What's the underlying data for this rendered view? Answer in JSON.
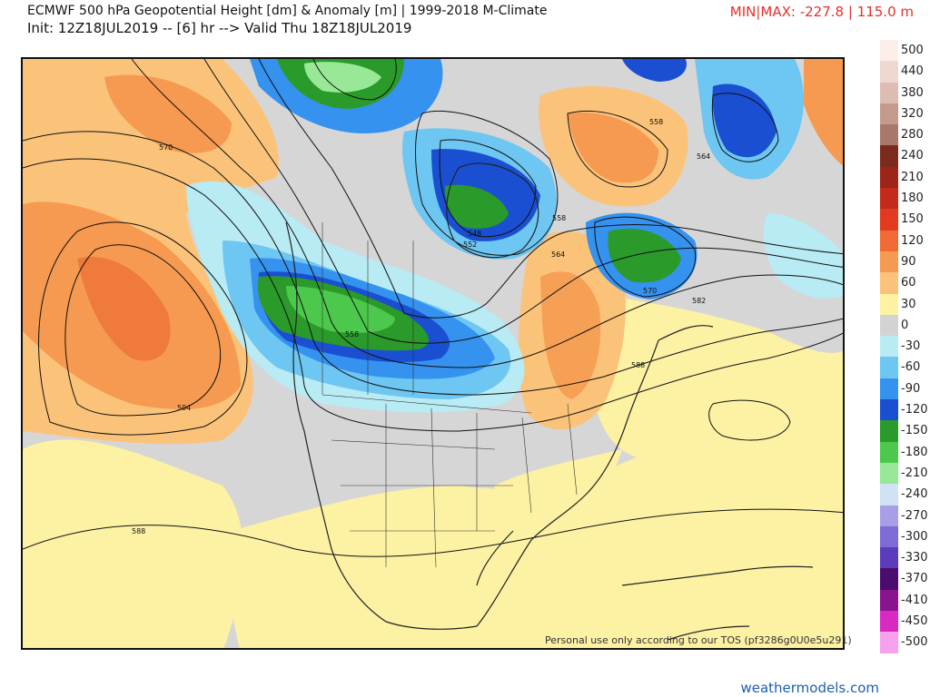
{
  "header": {
    "title": "ECMWF 500 hPa Geopotential Height [dm] & Anomaly [m] | 1999-2018 M-Climate",
    "subtitle": "Init: 12Z18JUL2019 -- [6] hr --> Valid Thu 18Z18JUL2019",
    "minmax": "MIN|MAX: -227.8 | 115.0 m"
  },
  "map": {
    "contour_labels": [
      "570",
      "558",
      "564",
      "552",
      "548",
      "558",
      "564",
      "570",
      "582",
      "588",
      "594",
      "588",
      "558"
    ],
    "watermark": "Personal use only according to our TOS (pf3286g0U0e5u291)"
  },
  "legend": {
    "items": [
      {
        "label": "500",
        "color": "#fdeee9"
      },
      {
        "label": "440",
        "color": "#efd8d0"
      },
      {
        "label": "380",
        "color": "#ddbdb2"
      },
      {
        "label": "320",
        "color": "#c49a8c"
      },
      {
        "label": "280",
        "color": "#a8786a"
      },
      {
        "label": "240",
        "color": "#7c2a1e"
      },
      {
        "label": "210",
        "color": "#9c2418"
      },
      {
        "label": "180",
        "color": "#c42a1a"
      },
      {
        "label": "150",
        "color": "#e23a20"
      },
      {
        "label": "120",
        "color": "#ef6a34"
      },
      {
        "label": "90",
        "color": "#f59a50"
      },
      {
        "label": "60",
        "color": "#fbc37a"
      },
      {
        "label": "30",
        "color": "#fdf1a4"
      },
      {
        "label": "0",
        "color": "#d3d3d3"
      },
      {
        "label": "-30",
        "color": "#b8ebf3"
      },
      {
        "label": "-60",
        "color": "#6ec6f2"
      },
      {
        "label": "-90",
        "color": "#3592ee"
      },
      {
        "label": "-120",
        "color": "#1a4fd2"
      },
      {
        "label": "-150",
        "color": "#2a9a2a"
      },
      {
        "label": "-180",
        "color": "#4cc84c"
      },
      {
        "label": "-210",
        "color": "#98e898"
      },
      {
        "label": "-240",
        "color": "#cfe2f6"
      },
      {
        "label": "-270",
        "color": "#a79ee8"
      },
      {
        "label": "-300",
        "color": "#7f6ad6"
      },
      {
        "label": "-330",
        "color": "#5a3cbc"
      },
      {
        "label": "-370",
        "color": "#4a0c6e"
      },
      {
        "label": "-410",
        "color": "#8a148e"
      },
      {
        "label": "-450",
        "color": "#d82ac2"
      },
      {
        "label": "-500",
        "color": "#f7a0ec"
      }
    ]
  },
  "footer": {
    "site": "weathermodels.com"
  }
}
